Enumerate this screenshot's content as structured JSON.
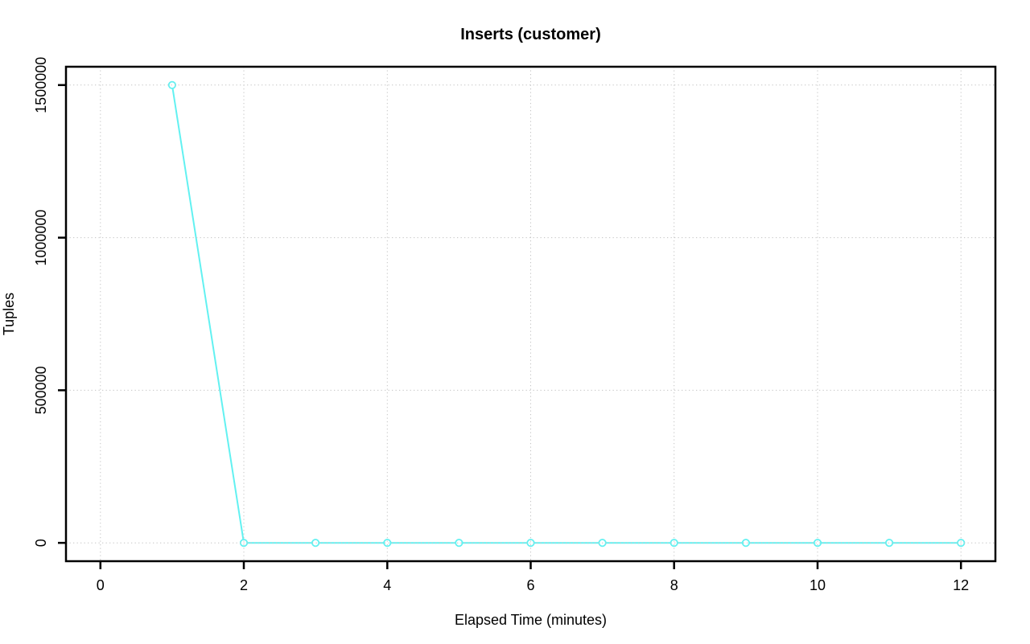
{
  "figure": {
    "background": "#FFFFFF"
  },
  "chart_data": {
    "type": "line",
    "title": "Inserts (customer)",
    "xlabel": "Elapsed Time (minutes)",
    "ylabel": "Tuples",
    "x": [
      1,
      2,
      3,
      4,
      5,
      6,
      7,
      8,
      9,
      10,
      11,
      12
    ],
    "series": [
      {
        "name": "Inserts (customer)",
        "values": [
          1500000,
          0,
          0,
          0,
          0,
          0,
          0,
          0,
          0,
          0,
          0,
          0
        ]
      }
    ],
    "xticks": [
      0,
      2,
      4,
      6,
      8,
      10,
      12
    ],
    "yticks": [
      0,
      500000,
      1000000,
      1500000
    ],
    "xlim": [
      -0.48,
      12.48
    ],
    "ylim": [
      -60000,
      1560000
    ],
    "grid": true,
    "legend": "none",
    "marker": "open-circle",
    "line_color": "#62F1F1",
    "marker_fill": "#FFFFFF",
    "grid_color": "#C3C3C3",
    "axis_color": "#000000"
  }
}
